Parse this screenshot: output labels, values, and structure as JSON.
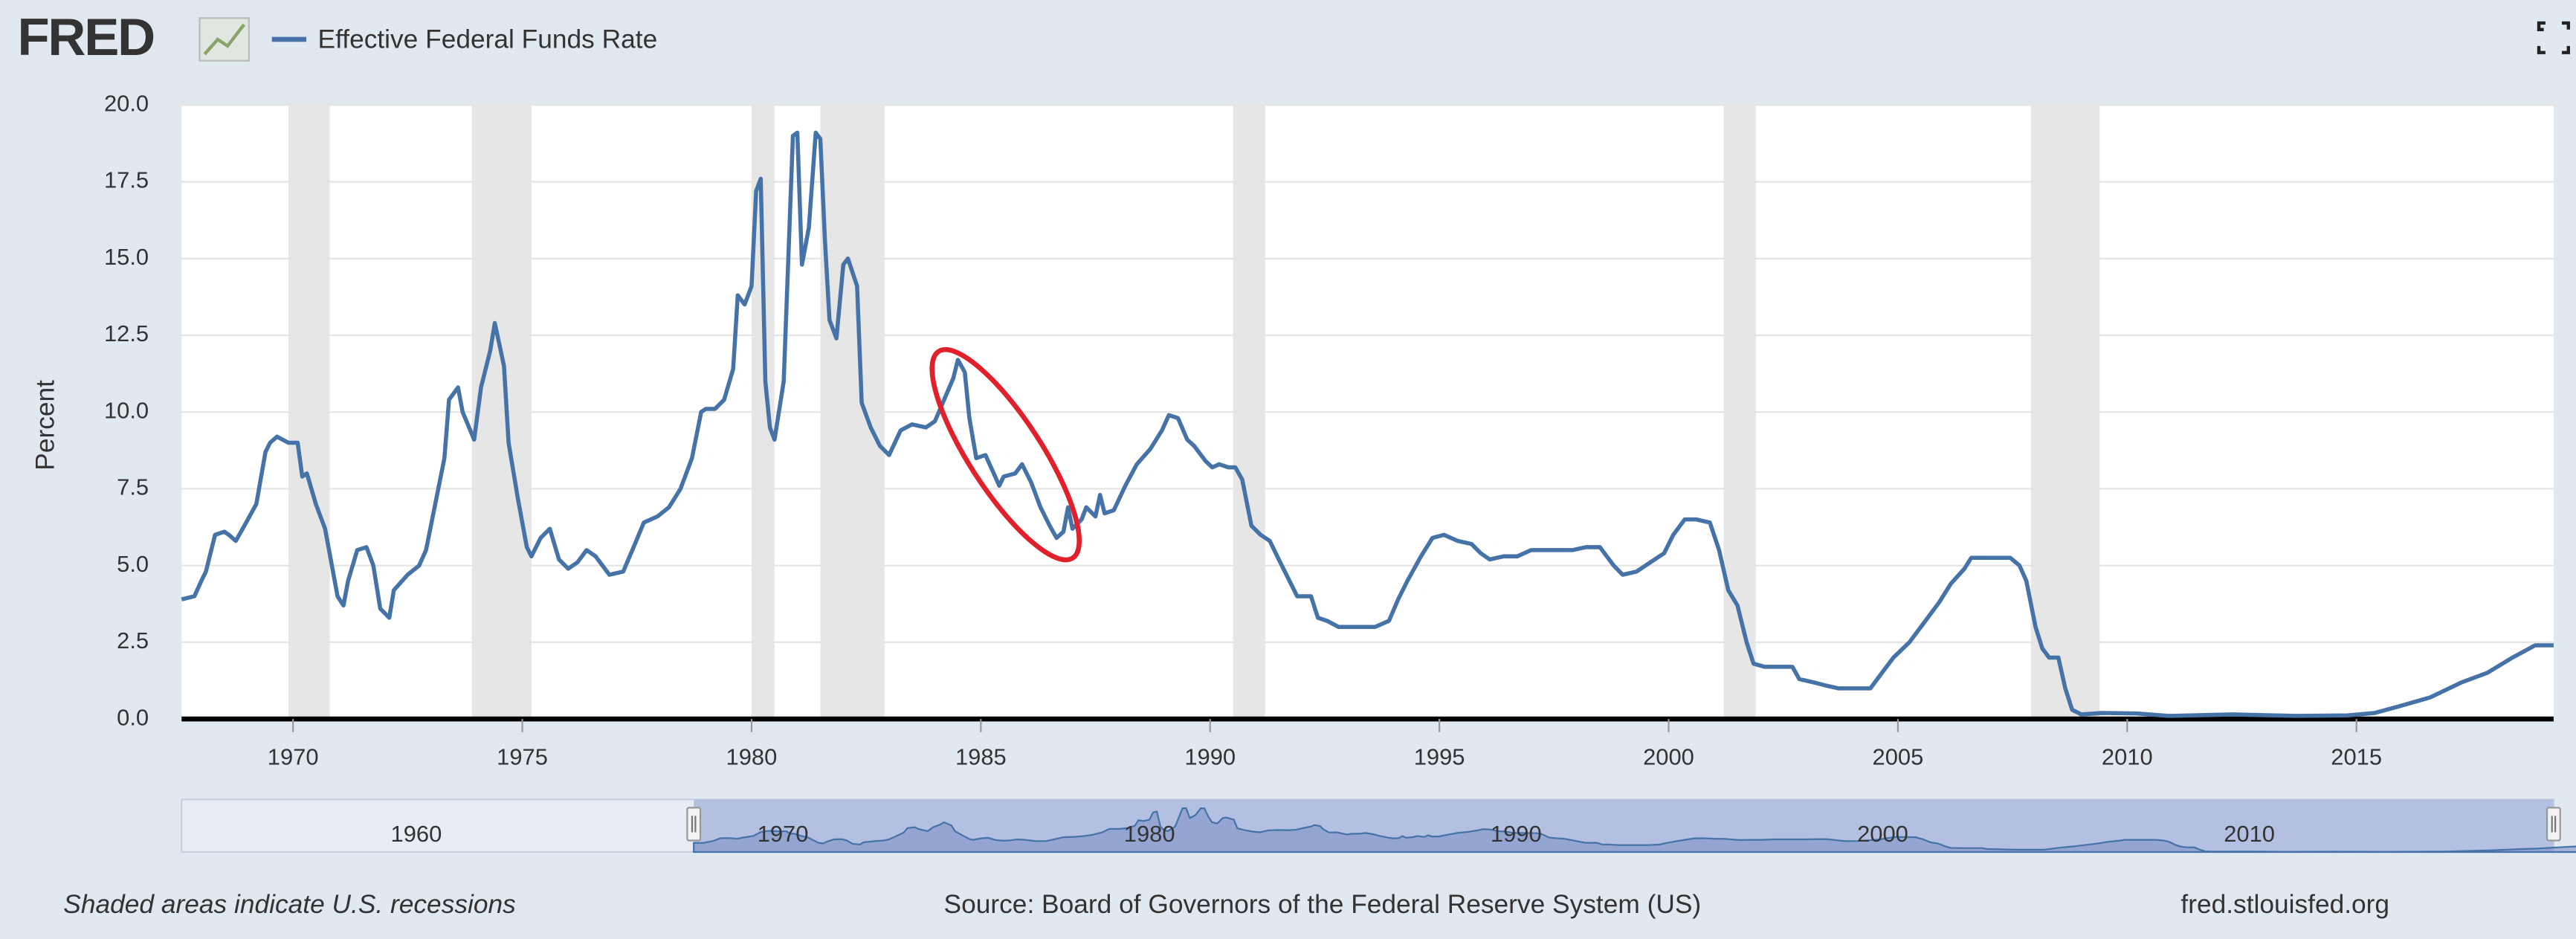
{
  "page": {
    "logo": "FRED",
    "note": "Shaded areas indicate U.S. recessions",
    "source": "Source: Board of Governors of the Federal Reserve System (US)",
    "site": "fred.stlouisfed.org"
  },
  "chart_data": {
    "type": "line",
    "ylabel": "Percent",
    "xlim": [
      1967.57,
      2019.3
    ],
    "xticks": [
      1970,
      1975,
      1980,
      1985,
      1990,
      1995,
      2000,
      2005,
      2010,
      2015
    ],
    "ylim": [
      0,
      20
    ],
    "yticks": [
      {
        "value": 0,
        "label": "0.0"
      },
      2.5,
      {
        "value": 5,
        "label": "5.0"
      },
      7.5,
      {
        "value": 10,
        "label": "10.0"
      },
      12.5,
      {
        "value": 15,
        "label": "15.0"
      },
      17.5,
      {
        "value": 20,
        "label": "20.0"
      }
    ],
    "grid": true,
    "legend": "top-left",
    "recessions": [
      [
        1969.9,
        1970.8
      ],
      [
        1973.9,
        1975.2
      ],
      [
        1980.0,
        1980.5
      ],
      [
        1981.5,
        1982.9
      ],
      [
        1990.5,
        1991.2
      ],
      [
        2001.2,
        2001.9
      ],
      [
        2007.9,
        2009.4
      ]
    ],
    "recession_color": "#e6e6e6",
    "x": [
      1967.57,
      1967.85,
      1968.0,
      1968.1,
      1968.3,
      1968.5,
      1968.6,
      1968.75,
      1968.9,
      1969.2,
      1969.4,
      1969.5,
      1969.65,
      1969.9,
      1970.1,
      1970.2,
      1970.3,
      1970.5,
      1970.7,
      1970.97,
      1971.1,
      1971.2,
      1971.4,
      1971.6,
      1971.75,
      1971.9,
      1972.1,
      1972.2,
      1972.5,
      1972.75,
      1972.9,
      1973.1,
      1973.3,
      1973.4,
      1973.6,
      1973.7,
      1973.95,
      1974.1,
      1974.3,
      1974.4,
      1974.6,
      1974.7,
      1974.9,
      1975.1,
      1975.2,
      1975.4,
      1975.6,
      1975.8,
      1976.0,
      1976.2,
      1976.4,
      1976.6,
      1976.9,
      1977.2,
      1977.4,
      1977.65,
      1977.95,
      1978.2,
      1978.45,
      1978.7,
      1978.9,
      1979.0,
      1979.2,
      1979.4,
      1979.6,
      1979.7,
      1979.85,
      1980.0,
      1980.1,
      1980.2,
      1980.3,
      1980.4,
      1980.5,
      1980.7,
      1980.8,
      1980.9,
      1981.0,
      1981.1,
      1981.25,
      1981.4,
      1981.5,
      1981.6,
      1981.7,
      1981.85,
      1982.0,
      1982.1,
      1982.3,
      1982.4,
      1982.6,
      1982.8,
      1983.0,
      1983.25,
      1983.5,
      1983.8,
      1984.0,
      1984.2,
      1984.4,
      1984.5,
      1984.65,
      1984.75,
      1984.9,
      1985.1,
      1985.25,
      1985.4,
      1985.5,
      1985.75,
      1985.9,
      1986.1,
      1986.3,
      1986.5,
      1986.65,
      1986.8,
      1986.9,
      1987.0,
      1987.2,
      1987.3,
      1987.5,
      1987.6,
      1987.7,
      1987.9,
      1988.15,
      1988.4,
      1988.7,
      1988.95,
      1989.1,
      1989.3,
      1989.5,
      1989.65,
      1989.9,
      1990.05,
      1990.2,
      1990.4,
      1990.55,
      1990.7,
      1990.9,
      1991.1,
      1991.3,
      1991.5,
      1991.7,
      1991.9,
      1992.2,
      1992.35,
      1992.55,
      1992.8,
      1993.05,
      1993.35,
      1993.6,
      1993.9,
      1994.1,
      1994.3,
      1994.6,
      1994.85,
      1995.1,
      1995.4,
      1995.7,
      1995.9,
      1996.1,
      1996.4,
      1996.7,
      1997.0,
      1997.45,
      1997.9,
      1998.2,
      1998.5,
      1998.8,
      1999.0,
      1999.3,
      1999.6,
      1999.9,
      2000.1,
      2000.35,
      2000.6,
      2000.9,
      2001.1,
      2001.3,
      2001.5,
      2001.7,
      2001.85,
      2002.1,
      2002.4,
      2002.7,
      2002.85,
      2003.15,
      2003.4,
      2003.7,
      2004.1,
      2004.4,
      2004.65,
      2004.9,
      2005.25,
      2005.6,
      2005.9,
      2006.15,
      2006.45,
      2006.6,
      2007.1,
      2007.45,
      2007.65,
      2007.8,
      2008.0,
      2008.15,
      2008.3,
      2008.5,
      2008.65,
      2008.8,
      2009.0,
      2009.45,
      2010.2,
      2010.9,
      2012.3,
      2013.7,
      2014.8,
      2015.4,
      2015.9,
      2016.6,
      2017.3,
      2017.85,
      2018.4,
      2018.9,
      2019.3
    ],
    "series": [
      {
        "name": "Effective Federal Funds Rate",
        "color": "#4572a7",
        "values": [
          3.9,
          4.0,
          4.5,
          4.8,
          6.0,
          6.1,
          6.0,
          5.8,
          6.2,
          7.0,
          8.7,
          9.0,
          9.2,
          9.0,
          9.0,
          7.9,
          8.0,
          7.0,
          6.2,
          4.0,
          3.7,
          4.5,
          5.5,
          5.6,
          5.0,
          3.6,
          3.3,
          4.2,
          4.7,
          5.0,
          5.5,
          7.0,
          8.5,
          10.4,
          10.8,
          10.0,
          9.1,
          10.8,
          12.0,
          12.9,
          11.5,
          9.0,
          7.2,
          5.6,
          5.3,
          5.9,
          6.2,
          5.2,
          4.9,
          5.1,
          5.5,
          5.3,
          4.7,
          4.8,
          5.5,
          6.4,
          6.6,
          6.9,
          7.5,
          8.5,
          10.0,
          10.1,
          10.1,
          10.4,
          11.4,
          13.8,
          13.5,
          14.1,
          17.2,
          17.6,
          11.0,
          9.5,
          9.1,
          11.0,
          15.0,
          19.0,
          19.1,
          14.8,
          16.0,
          19.1,
          18.9,
          15.6,
          13.0,
          12.4,
          14.8,
          15.0,
          14.1,
          10.3,
          9.5,
          8.9,
          8.6,
          9.4,
          9.6,
          9.5,
          9.7,
          10.4,
          11.1,
          11.7,
          11.3,
          9.8,
          8.5,
          8.6,
          8.1,
          7.6,
          7.9,
          8.0,
          8.3,
          7.7,
          6.9,
          6.3,
          5.9,
          6.1,
          6.9,
          6.2,
          6.5,
          6.9,
          6.6,
          7.3,
          6.7,
          6.8,
          7.6,
          8.3,
          8.8,
          9.4,
          9.9,
          9.8,
          9.1,
          8.9,
          8.4,
          8.2,
          8.3,
          8.2,
          8.2,
          7.8,
          6.3,
          6.0,
          5.8,
          5.2,
          4.6,
          4.0,
          4.0,
          3.3,
          3.2,
          3.0,
          3.0,
          3.0,
          3.0,
          3.2,
          3.9,
          4.5,
          5.3,
          5.9,
          6.0,
          5.8,
          5.7,
          5.4,
          5.2,
          5.3,
          5.3,
          5.5,
          5.5,
          5.5,
          5.6,
          5.6,
          5.0,
          4.7,
          4.8,
          5.1,
          5.4,
          6.0,
          6.5,
          6.5,
          6.4,
          5.5,
          4.2,
          3.7,
          2.5,
          1.8,
          1.7,
          1.7,
          1.7,
          1.3,
          1.2,
          1.1,
          1.0,
          1.0,
          1.0,
          1.5,
          2.0,
          2.5,
          3.2,
          3.8,
          4.4,
          4.9,
          5.25,
          5.25,
          5.25,
          5.0,
          4.5,
          3.0,
          2.3,
          2.0,
          2.0,
          1.0,
          0.3,
          0.15,
          0.2,
          0.18,
          0.1,
          0.15,
          0.1,
          0.12,
          0.2,
          0.4,
          0.7,
          1.2,
          1.5,
          2.0,
          2.4,
          2.4
        ]
      }
    ],
    "navigator": {
      "xlim": [
        1953.6,
        2018.3
      ],
      "xticks": [
        1960,
        1970,
        1980,
        1990,
        2000,
        2010
      ]
    }
  }
}
